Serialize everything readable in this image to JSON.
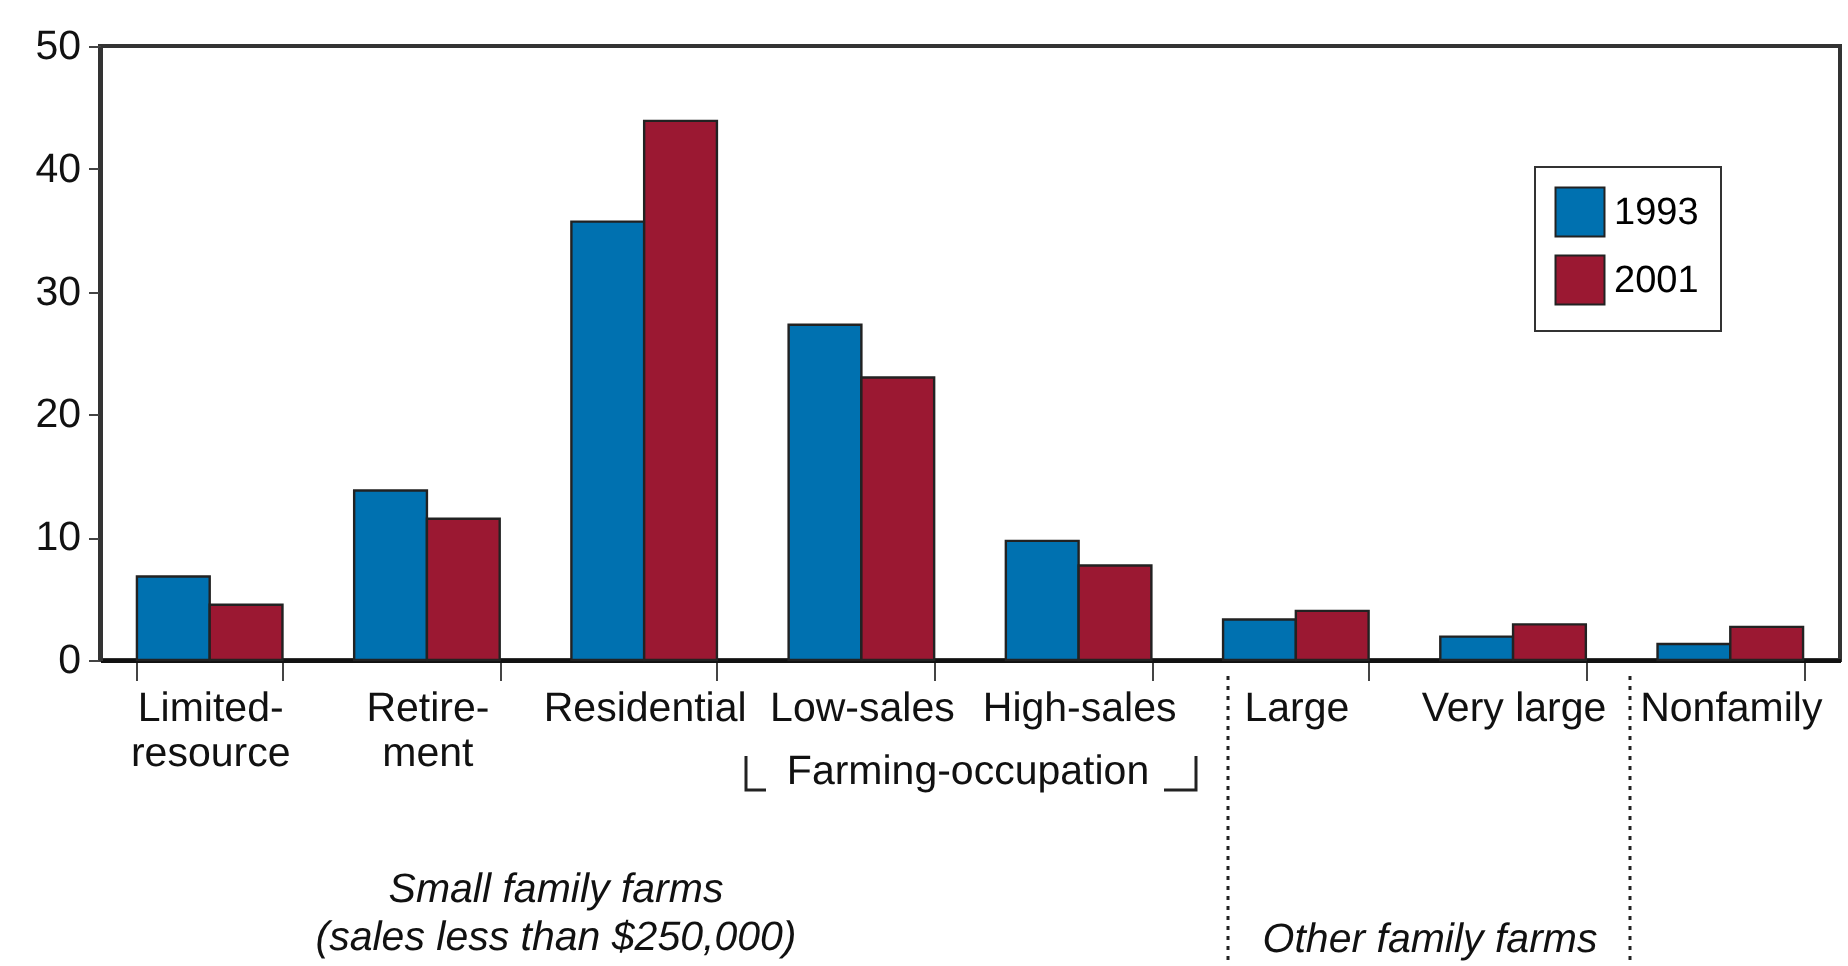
{
  "chart_data": {
    "type": "bar",
    "categories": [
      "Limited-\nresource",
      "Retire-\nment",
      "Residential",
      "Low-sales",
      "High-sales",
      "Large",
      "Very large",
      "Nonfamily"
    ],
    "series": [
      {
        "name": "1993",
        "color": "#0071b0",
        "values": [
          6.8,
          13.8,
          35.7,
          27.3,
          9.7,
          3.3,
          1.9,
          1.3
        ]
      },
      {
        "name": "2001",
        "color": "#9b1832",
        "values": [
          4.5,
          11.5,
          43.9,
          23.0,
          7.7,
          4.0,
          2.9,
          2.7
        ]
      }
    ],
    "ylim": [
      0,
      50
    ],
    "yticks": [
      0,
      10,
      20,
      30,
      40,
      50
    ],
    "grid": false,
    "legend": "top right",
    "annotations": [
      "Farming-occupation",
      "Small family farms\n(sales less than $250,000)",
      "Other family farms"
    ]
  }
}
